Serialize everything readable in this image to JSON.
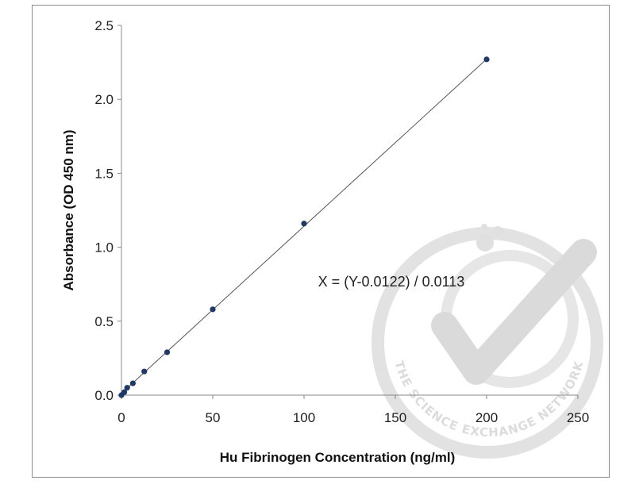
{
  "chart_data": {
    "type": "scatter",
    "title": "",
    "xlabel": "Hu Fibrinogen Concentration (ng/ml)",
    "ylabel": "Absorbance (OD 450 nm)",
    "xlim": [
      0,
      250
    ],
    "ylim": [
      0,
      2.5
    ],
    "x_ticks": [
      "0",
      "50",
      "100",
      "150",
      "200",
      "250"
    ],
    "y_ticks": [
      "0.0",
      "0.5",
      "1.0",
      "1.5",
      "2.0",
      "2.5"
    ],
    "grid": false,
    "legend": "none",
    "series": [
      {
        "x": [
          0,
          1.56,
          3.13,
          6.25,
          12.5,
          25,
          50,
          100,
          200
        ],
        "y": [
          0.0,
          0.02,
          0.05,
          0.08,
          0.16,
          0.29,
          0.58,
          1.16,
          2.27
        ],
        "marker_color": "#1f3864",
        "trendline": "linear"
      }
    ],
    "trendline": {
      "slope": 0.0113,
      "intercept": 0.0122
    },
    "annotation": "X = (Y-0.0122) / 0.0113"
  },
  "watermark": {
    "text": "THE SCIENCE EXCHANGE NETWORK",
    "icon": "checkmark-seal-icon"
  },
  "colors": {
    "marker": "#1f3864",
    "trendline": "#555555",
    "axis": "#888888",
    "watermark": "#dcdcdc"
  }
}
